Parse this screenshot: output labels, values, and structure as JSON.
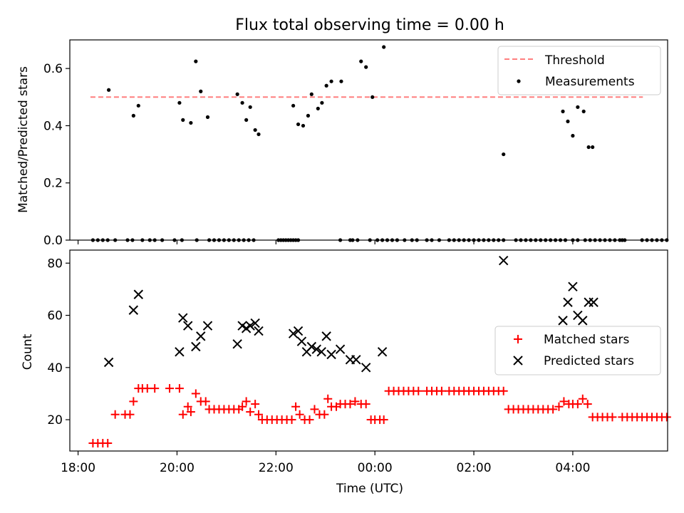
{
  "chart_data": [
    {
      "type": "scatter",
      "title": "Flux total observing time = 0.00 h",
      "ylabel": "Matched/Predicted stars",
      "xlabel": "",
      "x_unit": "hours (UTC), values past 24 continue into the next day",
      "xlim": [
        "17:50",
        "05:55"
      ],
      "ylim": [
        0,
        0.7
      ],
      "yticks": [
        "0.0",
        "0.2",
        "0.4",
        "0.6"
      ],
      "legend": {
        "placement": "top-right",
        "threshold_label": "Threshold",
        "measurements_label": "Measurements"
      },
      "threshold": {
        "name": "Threshold",
        "value": 0.5,
        "x_range": [
          "18:15",
          "05:25"
        ],
        "color": "#ff7f7f",
        "style": "dashed"
      },
      "measurements": {
        "name": "Measurements",
        "color": "#000000",
        "x": [
          18.3,
          18.4,
          18.5,
          18.6,
          18.75,
          19.0,
          19.1,
          19.3,
          19.45,
          19.55,
          19.7,
          19.95,
          20.1,
          20.4,
          20.65,
          20.75,
          20.85,
          20.95,
          21.05,
          21.15,
          21.25,
          21.35,
          21.45,
          21.55,
          22.05,
          22.1,
          22.15,
          22.2,
          22.25,
          22.3,
          22.35,
          22.4,
          22.45,
          23.3,
          23.5,
          23.55,
          23.65,
          23.9,
          24.05,
          24.15,
          24.25,
          24.35,
          24.45,
          24.6,
          24.75,
          24.85,
          25.05,
          25.15,
          25.3,
          25.5,
          25.6,
          25.7,
          25.8,
          25.9,
          26.0,
          26.1,
          26.2,
          26.3,
          26.4,
          26.5,
          26.6,
          26.85,
          26.95,
          27.05,
          27.15,
          27.25,
          27.35,
          27.45,
          27.55,
          27.65,
          27.75,
          27.85,
          28.0,
          28.1,
          28.25,
          28.35,
          28.45,
          28.55,
          28.65,
          28.75,
          28.85,
          28.95,
          29.0,
          29.05,
          29.4,
          29.5,
          29.6,
          29.7,
          29.8,
          29.9
        ],
        "y": [
          0,
          0,
          0,
          0,
          0,
          0,
          0,
          0,
          0,
          0,
          0,
          0,
          0,
          0,
          0,
          0,
          0,
          0,
          0,
          0,
          0,
          0,
          0,
          0,
          0,
          0,
          0,
          0,
          0,
          0,
          0,
          0,
          0,
          0,
          0,
          0,
          0,
          0,
          0,
          0,
          0,
          0,
          0,
          0,
          0,
          0,
          0,
          0,
          0,
          0,
          0,
          0,
          0,
          0,
          0,
          0,
          0,
          0,
          0,
          0,
          0,
          0,
          0,
          0,
          0,
          0,
          0,
          0,
          0,
          0,
          0,
          0,
          0,
          0,
          0,
          0,
          0,
          0,
          0,
          0,
          0,
          0,
          0,
          0,
          0,
          0,
          0,
          0,
          0,
          0
        ]
      },
      "measurements_nonzero": {
        "x": [
          18.62,
          19.12,
          19.22,
          20.05,
          20.12,
          20.28,
          20.38,
          20.48,
          20.62,
          21.22,
          21.32,
          21.4,
          21.48,
          21.58,
          21.65,
          22.35,
          22.45,
          22.55,
          22.65,
          22.72,
          22.85,
          22.93,
          23.02,
          23.12,
          23.32,
          23.72,
          23.82,
          23.95,
          24.18,
          26.6,
          27.8,
          27.9,
          28.0,
          28.1,
          28.22,
          28.32,
          28.4
        ],
        "y": [
          0.525,
          0.435,
          0.47,
          0.48,
          0.42,
          0.41,
          0.625,
          0.52,
          0.43,
          0.51,
          0.48,
          0.42,
          0.465,
          0.385,
          0.37,
          0.47,
          0.405,
          0.4,
          0.435,
          0.51,
          0.46,
          0.48,
          0.54,
          0.555,
          0.555,
          0.625,
          0.605,
          0.5,
          0.675,
          0.3,
          0.45,
          0.415,
          0.365,
          0.465,
          0.45,
          0.325,
          0.325
        ]
      }
    },
    {
      "type": "scatter",
      "title": "",
      "ylabel": "Count",
      "xlabel": "Time (UTC)",
      "xlim": [
        "17:50",
        "05:55"
      ],
      "ylim": [
        8,
        85
      ],
      "yticks": [
        "20",
        "40",
        "60",
        "80"
      ],
      "xticks": [
        "18:00",
        "20:00",
        "22:00",
        "00:00",
        "02:00",
        "04:00"
      ],
      "legend": {
        "placement": "center-right",
        "matched_label": "Matched stars",
        "predicted_label": "Predicted stars"
      },
      "matched": {
        "name": "Matched stars",
        "color": "#ff0000",
        "marker": "+",
        "x": [
          18.3,
          18.4,
          18.5,
          18.6,
          18.75,
          18.95,
          19.05,
          19.12,
          19.22,
          19.3,
          19.4,
          19.55,
          19.85,
          20.05,
          20.12,
          20.22,
          20.28,
          20.38,
          20.48,
          20.58,
          20.65,
          20.75,
          20.85,
          20.95,
          21.05,
          21.15,
          21.25,
          21.32,
          21.4,
          21.48,
          21.58,
          21.65,
          21.72,
          21.82,
          21.92,
          22.02,
          22.12,
          22.22,
          22.32,
          22.4,
          22.48,
          22.58,
          22.68,
          22.78,
          22.88,
          22.98,
          23.05,
          23.12,
          23.22,
          23.3,
          23.4,
          23.5,
          23.6,
          23.72,
          23.82,
          23.92,
          24.0,
          24.1,
          24.18,
          24.28,
          24.38,
          24.48,
          24.58,
          24.68,
          24.78,
          24.88,
          25.05,
          25.15,
          25.25,
          25.35,
          25.5,
          25.6,
          25.7,
          25.8,
          25.9,
          26.0,
          26.1,
          26.2,
          26.3,
          26.4,
          26.5,
          26.6,
          26.7,
          26.8,
          26.9,
          27.0,
          27.1,
          27.2,
          27.3,
          27.4,
          27.5,
          27.6,
          27.72,
          27.82,
          27.92,
          28.0,
          28.1,
          28.2,
          28.3,
          28.4,
          28.5,
          28.6,
          28.7,
          28.8,
          29.0,
          29.1,
          29.2,
          29.3,
          29.4,
          29.5,
          29.6,
          29.7,
          29.8,
          29.9
        ],
        "y": [
          11,
          11,
          11,
          11,
          22,
          22,
          22,
          27,
          32,
          32,
          32,
          32,
          32,
          32,
          22,
          25,
          23,
          30,
          27,
          27,
          24,
          24,
          24,
          24,
          24,
          24,
          24,
          25,
          27,
          23,
          26,
          22,
          20,
          20,
          20,
          20,
          20,
          20,
          20,
          25,
          22,
          20,
          20,
          24,
          22,
          22,
          28,
          25,
          25,
          26,
          26,
          26,
          27,
          26,
          26,
          20,
          20,
          20,
          20,
          31,
          31,
          31,
          31,
          31,
          31,
          31,
          31,
          31,
          31,
          31,
          31,
          31,
          31,
          31,
          31,
          31,
          31,
          31,
          31,
          31,
          31,
          31,
          24,
          24,
          24,
          24,
          24,
          24,
          24,
          24,
          24,
          24,
          25,
          27,
          26,
          26,
          26,
          28,
          26,
          21,
          21,
          21,
          21,
          21,
          21,
          21,
          21,
          21,
          21,
          21,
          21,
          21,
          21,
          21
        ]
      },
      "predicted": {
        "name": "Predicted stars",
        "color": "#000000",
        "marker": "x",
        "x": [
          18.62,
          19.12,
          19.22,
          20.05,
          20.12,
          20.22,
          20.38,
          20.48,
          20.62,
          21.22,
          21.32,
          21.4,
          21.48,
          21.58,
          21.65,
          22.35,
          22.45,
          22.52,
          22.62,
          22.72,
          22.82,
          22.92,
          23.02,
          23.12,
          23.3,
          23.5,
          23.62,
          23.82,
          24.15,
          26.6,
          27.8,
          27.9,
          28.0,
          28.1,
          28.2,
          28.32,
          28.42
        ],
        "y": [
          42,
          62,
          68,
          46,
          59,
          56,
          48,
          52,
          56,
          49,
          56,
          55,
          56,
          57,
          54,
          53,
          54,
          50,
          46,
          48,
          47,
          46,
          52,
          45,
          47,
          43,
          43,
          40,
          46,
          81,
          58,
          65,
          71,
          60,
          58,
          65,
          65
        ]
      }
    }
  ]
}
